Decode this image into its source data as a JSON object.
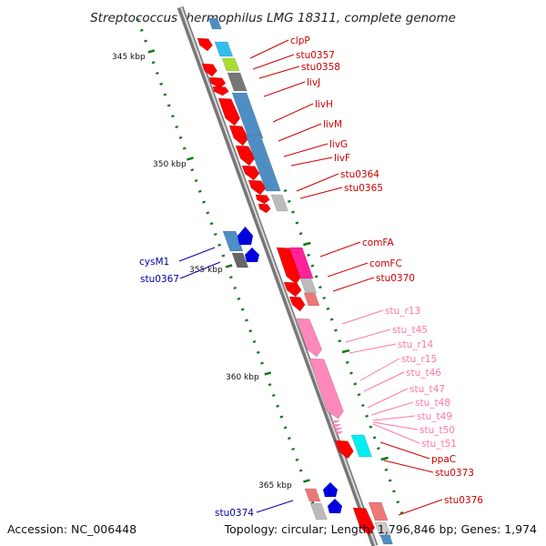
{
  "title": "Streptococcus thermophilus LMG 18311, complete genome",
  "footer": {
    "accession": "Accession: NC_006448",
    "topology": "Topology: circular; Length: 1,796,846 bp; Genes: 1,974"
  },
  "colors": {
    "red": "#ff0000",
    "blue": "#0000cc",
    "pink": "#ff88bb",
    "steel": "#4f8ec4",
    "label_red": "#cc0000",
    "label_blue": "#0000aa",
    "label_pink": "#ff77aa",
    "tick": "#117711",
    "backbone": "#888888"
  },
  "kbp_ticks": [
    {
      "label": "345 kbp"
    },
    {
      "label": "350 kbp"
    },
    {
      "label": "355 kbp"
    },
    {
      "label": "360 kbp"
    },
    {
      "label": "365 kbp"
    }
  ],
  "gene_labels": {
    "right": [
      {
        "name": "clpP",
        "color": "red"
      },
      {
        "name": "stu0357",
        "color": "red"
      },
      {
        "name": "stu0358",
        "color": "red"
      },
      {
        "name": "livJ",
        "color": "red"
      },
      {
        "name": "livH",
        "color": "red"
      },
      {
        "name": "livM",
        "color": "red"
      },
      {
        "name": "livG",
        "color": "red"
      },
      {
        "name": "livF",
        "color": "red"
      },
      {
        "name": "stu0364",
        "color": "red"
      },
      {
        "name": "stu0365",
        "color": "red"
      },
      {
        "name": "comFA",
        "color": "red"
      },
      {
        "name": "comFC",
        "color": "red"
      },
      {
        "name": "stu0370",
        "color": "red"
      },
      {
        "name": "stu_r13",
        "color": "pink"
      },
      {
        "name": "stu_t45",
        "color": "pink"
      },
      {
        "name": "stu_r14",
        "color": "pink"
      },
      {
        "name": "stu_r15",
        "color": "pink"
      },
      {
        "name": "stu_t46",
        "color": "pink"
      },
      {
        "name": "stu_t47",
        "color": "pink"
      },
      {
        "name": "stu_t48",
        "color": "pink"
      },
      {
        "name": "stu_t49",
        "color": "pink"
      },
      {
        "name": "stu_t50",
        "color": "pink"
      },
      {
        "name": "stu_t51",
        "color": "pink"
      },
      {
        "name": "ppaC",
        "color": "red"
      },
      {
        "name": "stu0373",
        "color": "red"
      },
      {
        "name": "stu0376",
        "color": "red"
      }
    ],
    "left": [
      {
        "name": "cysM1",
        "color": "blue"
      },
      {
        "name": "stu0367",
        "color": "blue"
      },
      {
        "name": "stu0374",
        "color": "blue"
      }
    ]
  }
}
